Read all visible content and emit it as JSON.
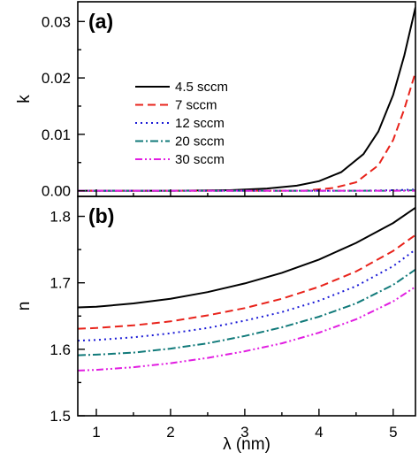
{
  "chart_data": [
    {
      "panel_label": "(a)",
      "type": "line",
      "ylabel": "k",
      "ylim": [
        -0.001,
        0.0335
      ],
      "xlim": [
        0.75,
        5.3
      ],
      "yticks": [
        "0.00",
        "0.01",
        "0.02",
        "0.03"
      ],
      "ytick_values": [
        0.0,
        0.01,
        0.02,
        0.03
      ],
      "legend_position": "center-left",
      "series": [
        {
          "name": "4.5 sccm",
          "color": "#000000",
          "dash": "solid",
          "x": [
            0.75,
            1.0,
            2.0,
            2.8,
            3.3,
            3.7,
            4.0,
            4.3,
            4.6,
            4.8,
            5.0,
            5.15,
            5.3
          ],
          "y": [
            0.0,
            0.0,
            0.0,
            0.0001,
            0.0004,
            0.0009,
            0.0017,
            0.0033,
            0.0065,
            0.0105,
            0.017,
            0.024,
            0.0325
          ]
        },
        {
          "name": "7 sccm",
          "color": "#e8231b",
          "dash": "dashed",
          "x": [
            0.75,
            2.0,
            3.8,
            4.2,
            4.5,
            4.8,
            5.0,
            5.15,
            5.3
          ],
          "y": [
            0.0,
            0.0,
            0.0,
            0.0005,
            0.0015,
            0.0045,
            0.009,
            0.0145,
            0.021
          ]
        },
        {
          "name": "12 sccm",
          "color": "#1a1ad6",
          "dash": "dotted",
          "x": [
            0.75,
            3.0,
            4.5,
            5.0,
            5.3
          ],
          "y": [
            0.0,
            0.0,
            0.0,
            0.0001,
            0.0002
          ]
        },
        {
          "name": "20 sccm",
          "color": "#117a7a",
          "dash": "dash-dot",
          "x": [
            0.75,
            3.0,
            5.0,
            5.3
          ],
          "y": [
            0.0,
            0.0,
            0.0,
            0.0001
          ]
        },
        {
          "name": "30 sccm",
          "color": "#e11ee1",
          "dash": "dash-dot-dot",
          "x": [
            0.75,
            3.0,
            5.3
          ],
          "y": [
            0.0,
            0.0,
            0.0
          ]
        }
      ]
    },
    {
      "panel_label": "(b)",
      "type": "line",
      "ylabel": "n",
      "xlabel": "λ (nm)",
      "ylim": [
        1.5,
        1.83
      ],
      "xlim": [
        0.75,
        5.3
      ],
      "xticks": [
        "1",
        "2",
        "3",
        "4",
        "5"
      ],
      "xtick_values": [
        1,
        2,
        3,
        4,
        5
      ],
      "yticks": [
        "1.5",
        "1.6",
        "1.7",
        "1.8"
      ],
      "ytick_values": [
        1.5,
        1.6,
        1.7,
        1.8
      ],
      "series": [
        {
          "name": "4.5 sccm",
          "color": "#000000",
          "dash": "solid",
          "x": [
            0.75,
            1.0,
            1.5,
            2.0,
            2.5,
            3.0,
            3.5,
            4.0,
            4.5,
            5.0,
            5.3
          ],
          "y": [
            1.663,
            1.664,
            1.669,
            1.676,
            1.686,
            1.699,
            1.715,
            1.735,
            1.76,
            1.79,
            1.813
          ]
        },
        {
          "name": "7 sccm",
          "color": "#e8231b",
          "dash": "dashed",
          "x": [
            0.75,
            1.0,
            1.5,
            2.0,
            2.5,
            3.0,
            3.5,
            4.0,
            4.5,
            5.0,
            5.3
          ],
          "y": [
            1.631,
            1.632,
            1.636,
            1.642,
            1.651,
            1.662,
            1.676,
            1.694,
            1.717,
            1.748,
            1.772
          ]
        },
        {
          "name": "12 sccm",
          "color": "#1a1ad6",
          "dash": "dotted",
          "x": [
            0.75,
            1.0,
            1.5,
            2.0,
            2.5,
            3.0,
            3.5,
            4.0,
            4.5,
            5.0,
            5.3
          ],
          "y": [
            1.613,
            1.614,
            1.618,
            1.624,
            1.632,
            1.643,
            1.656,
            1.673,
            1.695,
            1.725,
            1.75
          ]
        },
        {
          "name": "20 sccm",
          "color": "#117a7a",
          "dash": "dash-dot",
          "x": [
            0.75,
            1.0,
            1.5,
            2.0,
            2.5,
            3.0,
            3.5,
            4.0,
            4.5,
            5.0,
            5.3
          ],
          "y": [
            1.591,
            1.592,
            1.595,
            1.601,
            1.609,
            1.62,
            1.633,
            1.649,
            1.669,
            1.697,
            1.72
          ]
        },
        {
          "name": "30 sccm",
          "color": "#e11ee1",
          "dash": "dash-dot-dot",
          "x": [
            0.75,
            1.0,
            1.5,
            2.0,
            2.5,
            3.0,
            3.5,
            4.0,
            4.5,
            5.0,
            5.3
          ],
          "y": [
            1.568,
            1.569,
            1.573,
            1.579,
            1.587,
            1.597,
            1.609,
            1.625,
            1.645,
            1.672,
            1.694
          ]
        }
      ]
    }
  ]
}
